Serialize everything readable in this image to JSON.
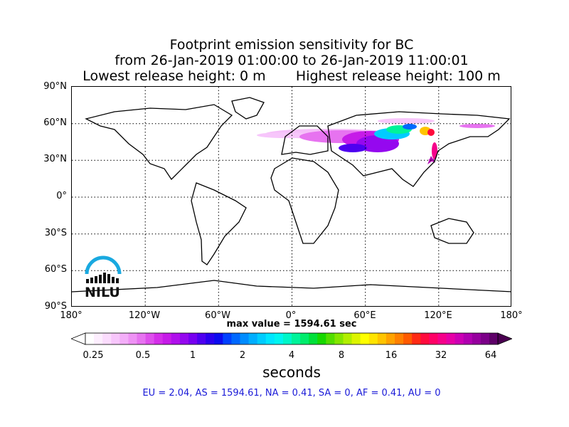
{
  "title": {
    "line1": "Footprint emission sensitivity for BC",
    "line2": "from 26-Jan-2019 01:00:00 to 26-Jan-2019 11:00:01",
    "line3": "Lowest release height: 0 m       Highest release height: 100 m"
  },
  "axes": {
    "lat_labels": [
      "90°N",
      "60°N",
      "30°N",
      "0°",
      "30°S",
      "60°S",
      "90°S"
    ],
    "lon_labels": [
      "180°",
      "120°W",
      "60°W",
      "0°",
      "60°E",
      "120°E",
      "180°"
    ]
  },
  "max_value_text": "max value = 1594.61 sec",
  "colorbar": {
    "ticks": [
      "0.25",
      "0.5",
      "1",
      "2",
      "4",
      "8",
      "16",
      "32",
      "64"
    ],
    "units": "seconds",
    "colors": [
      "#ffffff",
      "#fdeefe",
      "#fbdcfd",
      "#f7c6fb",
      "#f3aef8",
      "#ee92f4",
      "#e773f0",
      "#de4fec",
      "#d42ee9",
      "#c61be8",
      "#b010ec",
      "#9508ef",
      "#7700f0",
      "#4e00f0",
      "#2a00ee",
      "#0b0aef",
      "#0040ff",
      "#0068ff",
      "#008cff",
      "#00aeff",
      "#00ccff",
      "#00e6ff",
      "#00f5f0",
      "#00f6c8",
      "#00f39a",
      "#00ec6c",
      "#00e03a",
      "#17d800",
      "#52de00",
      "#84e600",
      "#b2ee00",
      "#dcf400",
      "#ffff00",
      "#ffe400",
      "#ffc400",
      "#ffa200",
      "#ff8000",
      "#ff5a00",
      "#ff2a14",
      "#ff0a3c",
      "#ff0066",
      "#f5008a",
      "#e600a6",
      "#cc00b4",
      "#b000b0",
      "#96009e",
      "#7b0088",
      "#5e0068"
    ]
  },
  "summary": "EU = 2.04,  AS = 1594.61,  NA = 0.41,  SA = 0,  AF = 0.41,  AU = 0",
  "logo": {
    "text": "NILU",
    "color": "#19a9e0"
  }
}
